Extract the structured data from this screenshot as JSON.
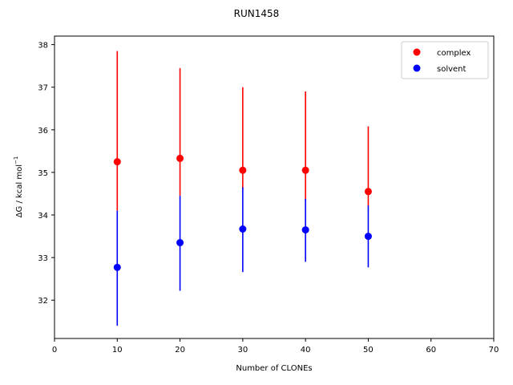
{
  "chart_data": {
    "type": "scatter",
    "title": "RUN1458",
    "xlabel": "Number of CLONEs",
    "ylabel_main": "ΔG / kcal mol",
    "ylabel_sup": "−1",
    "xlim": [
      0,
      70
    ],
    "ylim": [
      31.1,
      38.2
    ],
    "xticks": [
      0,
      10,
      20,
      30,
      40,
      50,
      60,
      70
    ],
    "yticks": [
      32,
      33,
      34,
      35,
      36,
      37,
      38
    ],
    "grid": false,
    "legend_position": "top-right",
    "series": [
      {
        "name": "complex",
        "color": "#ff0000",
        "x": [
          10,
          20,
          30,
          40,
          50
        ],
        "y": [
          35.25,
          35.33,
          35.05,
          35.05,
          34.55
        ],
        "yerr_low": [
          34.1,
          34.45,
          34.6,
          34.35,
          34.2
        ],
        "yerr_high": [
          37.85,
          37.45,
          37.0,
          36.9,
          36.08
        ]
      },
      {
        "name": "solvent",
        "color": "#0000ff",
        "x": [
          10,
          20,
          30,
          40,
          50
        ],
        "y": [
          32.77,
          33.35,
          33.67,
          33.65,
          33.5
        ],
        "yerr_low": [
          31.4,
          32.22,
          32.66,
          32.9,
          32.77
        ],
        "yerr_high": [
          34.1,
          34.45,
          34.65,
          34.38,
          34.22
        ]
      }
    ]
  }
}
